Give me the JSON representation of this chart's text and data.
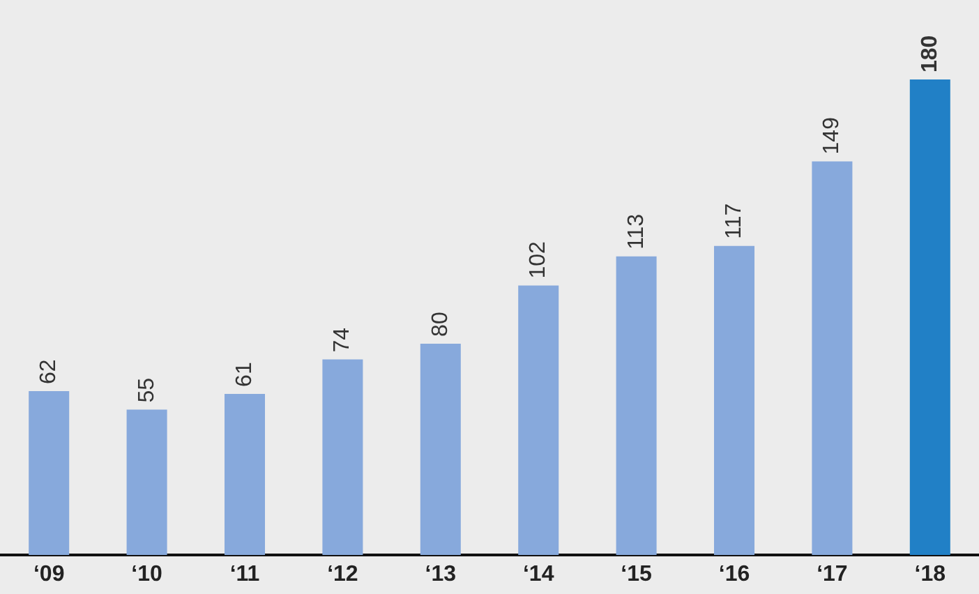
{
  "chart_data": {
    "type": "bar",
    "categories": [
      "‘09",
      "‘10",
      "‘11",
      "‘12",
      "‘13",
      "‘14",
      "‘15",
      "‘16",
      "‘17",
      "‘18"
    ],
    "values": [
      62,
      55,
      61,
      74,
      80,
      102,
      113,
      117,
      149,
      180
    ],
    "colors": [
      "#87a9dc",
      "#87a9dc",
      "#87a9dc",
      "#87a9dc",
      "#87a9dc",
      "#87a9dc",
      "#87a9dc",
      "#87a9dc",
      "#87a9dc",
      "#2180c6"
    ],
    "data_labels": true
  }
}
